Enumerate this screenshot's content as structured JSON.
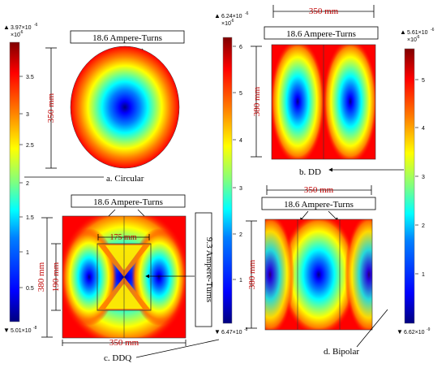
{
  "colors": {
    "dim_red": "#c00000",
    "ink": "#000000",
    "colormap": [
      "#00007f",
      "#0000ff",
      "#007fff",
      "#00ffff",
      "#7fff7f",
      "#ffff00",
      "#ff7f00",
      "#ff0000",
      "#7f0000"
    ]
  },
  "colorbars": [
    {
      "name": "circular",
      "max_label": "3.97×10",
      "max_exp": "-6",
      "unit_label": "×10",
      "unit_exp": "-6",
      "min_label": "5.01×10",
      "min_exp": "-8",
      "ticks": [
        "3.5",
        "3",
        "2.5",
        "2",
        "1.5",
        "1",
        "0.5"
      ]
    },
    {
      "name": "dd",
      "max_label": "6.24×10",
      "max_exp": "-6",
      "unit_label": "×10",
      "unit_exp": "-6",
      "min_label": "6.47×10",
      "min_exp": "-8",
      "ticks": [
        "6",
        "5",
        "4",
        "3",
        "2",
        "1"
      ]
    },
    {
      "name": "bipolar",
      "max_label": "5.61×10",
      "max_exp": "-6",
      "unit_label": "×10",
      "unit_exp": "-6",
      "min_label": "6.62×10",
      "min_exp": "-9",
      "ticks": [
        "5",
        "4",
        "3",
        "2",
        "1"
      ]
    }
  ],
  "panels": {
    "circular": {
      "ampere_label": "18.6 Ampere-Turns",
      "dim_height": "350 mm",
      "caption": "a. Circular"
    },
    "dd": {
      "ampere_label": "18.6 Ampere-Turns",
      "dim_width": "350 mm",
      "dim_height": "380 mm",
      "caption": "b. DD"
    },
    "ddq": {
      "ampere_label": "18.6 Ampere-Turns",
      "side_label": "9.3 Ampere-Turns",
      "dim_inner_width": "175 mm",
      "dim_height": "380 mm",
      "dim_inner_height": "190 mm",
      "dim_width": "350 mm",
      "caption": "c. DDQ"
    },
    "bipolar": {
      "ampere_label": "18.6 Ampere-Turns",
      "dim_width": "350 mm",
      "dim_height": "380 mm",
      "caption": "d. Bipolar"
    }
  }
}
